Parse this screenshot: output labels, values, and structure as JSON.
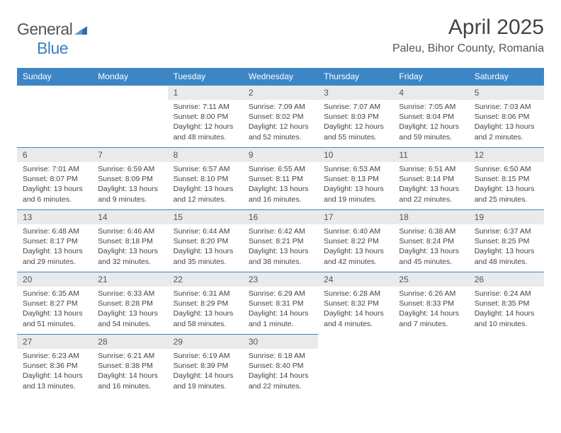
{
  "logo": {
    "general": "General",
    "blue": "Blue"
  },
  "title": "April 2025",
  "subtitle": "Paleu, Bihor County, Romania",
  "colors": {
    "header_bg": "#3d86c6",
    "header_fg": "#ffffff",
    "daynum_bg": "#e9eaec",
    "daynum_fg": "#555555",
    "row_border": "#3d86c6",
    "text": "#444444",
    "logo_blue": "#3b7fc4"
  },
  "weekdays": [
    "Sunday",
    "Monday",
    "Tuesday",
    "Wednesday",
    "Thursday",
    "Friday",
    "Saturday"
  ],
  "weeks": [
    [
      null,
      null,
      {
        "day": "1",
        "sunrise": "Sunrise: 7:11 AM",
        "sunset": "Sunset: 8:00 PM",
        "daylight": "Daylight: 12 hours and 48 minutes."
      },
      {
        "day": "2",
        "sunrise": "Sunrise: 7:09 AM",
        "sunset": "Sunset: 8:02 PM",
        "daylight": "Daylight: 12 hours and 52 minutes."
      },
      {
        "day": "3",
        "sunrise": "Sunrise: 7:07 AM",
        "sunset": "Sunset: 8:03 PM",
        "daylight": "Daylight: 12 hours and 55 minutes."
      },
      {
        "day": "4",
        "sunrise": "Sunrise: 7:05 AM",
        "sunset": "Sunset: 8:04 PM",
        "daylight": "Daylight: 12 hours and 59 minutes."
      },
      {
        "day": "5",
        "sunrise": "Sunrise: 7:03 AM",
        "sunset": "Sunset: 8:06 PM",
        "daylight": "Daylight: 13 hours and 2 minutes."
      }
    ],
    [
      {
        "day": "6",
        "sunrise": "Sunrise: 7:01 AM",
        "sunset": "Sunset: 8:07 PM",
        "daylight": "Daylight: 13 hours and 6 minutes."
      },
      {
        "day": "7",
        "sunrise": "Sunrise: 6:59 AM",
        "sunset": "Sunset: 8:09 PM",
        "daylight": "Daylight: 13 hours and 9 minutes."
      },
      {
        "day": "8",
        "sunrise": "Sunrise: 6:57 AM",
        "sunset": "Sunset: 8:10 PM",
        "daylight": "Daylight: 13 hours and 12 minutes."
      },
      {
        "day": "9",
        "sunrise": "Sunrise: 6:55 AM",
        "sunset": "Sunset: 8:11 PM",
        "daylight": "Daylight: 13 hours and 16 minutes."
      },
      {
        "day": "10",
        "sunrise": "Sunrise: 6:53 AM",
        "sunset": "Sunset: 8:13 PM",
        "daylight": "Daylight: 13 hours and 19 minutes."
      },
      {
        "day": "11",
        "sunrise": "Sunrise: 6:51 AM",
        "sunset": "Sunset: 8:14 PM",
        "daylight": "Daylight: 13 hours and 22 minutes."
      },
      {
        "day": "12",
        "sunrise": "Sunrise: 6:50 AM",
        "sunset": "Sunset: 8:15 PM",
        "daylight": "Daylight: 13 hours and 25 minutes."
      }
    ],
    [
      {
        "day": "13",
        "sunrise": "Sunrise: 6:48 AM",
        "sunset": "Sunset: 8:17 PM",
        "daylight": "Daylight: 13 hours and 29 minutes."
      },
      {
        "day": "14",
        "sunrise": "Sunrise: 6:46 AM",
        "sunset": "Sunset: 8:18 PM",
        "daylight": "Daylight: 13 hours and 32 minutes."
      },
      {
        "day": "15",
        "sunrise": "Sunrise: 6:44 AM",
        "sunset": "Sunset: 8:20 PM",
        "daylight": "Daylight: 13 hours and 35 minutes."
      },
      {
        "day": "16",
        "sunrise": "Sunrise: 6:42 AM",
        "sunset": "Sunset: 8:21 PM",
        "daylight": "Daylight: 13 hours and 38 minutes."
      },
      {
        "day": "17",
        "sunrise": "Sunrise: 6:40 AM",
        "sunset": "Sunset: 8:22 PM",
        "daylight": "Daylight: 13 hours and 42 minutes."
      },
      {
        "day": "18",
        "sunrise": "Sunrise: 6:38 AM",
        "sunset": "Sunset: 8:24 PM",
        "daylight": "Daylight: 13 hours and 45 minutes."
      },
      {
        "day": "19",
        "sunrise": "Sunrise: 6:37 AM",
        "sunset": "Sunset: 8:25 PM",
        "daylight": "Daylight: 13 hours and 48 minutes."
      }
    ],
    [
      {
        "day": "20",
        "sunrise": "Sunrise: 6:35 AM",
        "sunset": "Sunset: 8:27 PM",
        "daylight": "Daylight: 13 hours and 51 minutes."
      },
      {
        "day": "21",
        "sunrise": "Sunrise: 6:33 AM",
        "sunset": "Sunset: 8:28 PM",
        "daylight": "Daylight: 13 hours and 54 minutes."
      },
      {
        "day": "22",
        "sunrise": "Sunrise: 6:31 AM",
        "sunset": "Sunset: 8:29 PM",
        "daylight": "Daylight: 13 hours and 58 minutes."
      },
      {
        "day": "23",
        "sunrise": "Sunrise: 6:29 AM",
        "sunset": "Sunset: 8:31 PM",
        "daylight": "Daylight: 14 hours and 1 minute."
      },
      {
        "day": "24",
        "sunrise": "Sunrise: 6:28 AM",
        "sunset": "Sunset: 8:32 PM",
        "daylight": "Daylight: 14 hours and 4 minutes."
      },
      {
        "day": "25",
        "sunrise": "Sunrise: 6:26 AM",
        "sunset": "Sunset: 8:33 PM",
        "daylight": "Daylight: 14 hours and 7 minutes."
      },
      {
        "day": "26",
        "sunrise": "Sunrise: 6:24 AM",
        "sunset": "Sunset: 8:35 PM",
        "daylight": "Daylight: 14 hours and 10 minutes."
      }
    ],
    [
      {
        "day": "27",
        "sunrise": "Sunrise: 6:23 AM",
        "sunset": "Sunset: 8:36 PM",
        "daylight": "Daylight: 14 hours and 13 minutes."
      },
      {
        "day": "28",
        "sunrise": "Sunrise: 6:21 AM",
        "sunset": "Sunset: 8:38 PM",
        "daylight": "Daylight: 14 hours and 16 minutes."
      },
      {
        "day": "29",
        "sunrise": "Sunrise: 6:19 AM",
        "sunset": "Sunset: 8:39 PM",
        "daylight": "Daylight: 14 hours and 19 minutes."
      },
      {
        "day": "30",
        "sunrise": "Sunrise: 6:18 AM",
        "sunset": "Sunset: 8:40 PM",
        "daylight": "Daylight: 14 hours and 22 minutes."
      },
      null,
      null,
      null
    ]
  ]
}
